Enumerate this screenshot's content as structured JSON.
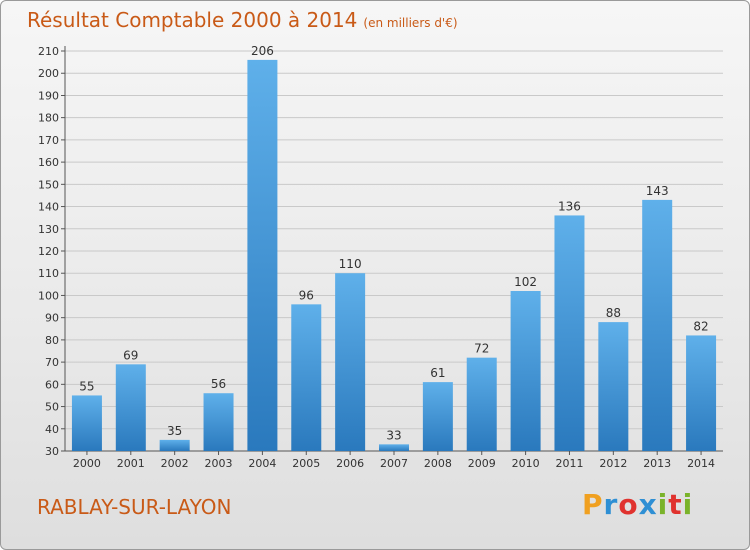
{
  "header": {
    "title": "Résultat Comptable 2000 à 2014",
    "unit": "(en milliers d'€)"
  },
  "footer": {
    "town": "RABLAY-SUR-LAYON",
    "logo": "Proxiti"
  },
  "colors": {
    "title": "#c95a17",
    "bar_top": "#5fb0ea",
    "bar_bottom": "#2a79bd",
    "logo_letters": [
      "#f0a020",
      "#2e8fd4",
      "#e0322e",
      "#2e8fd4",
      "#7ab32a",
      "#e0322e",
      "#7ab32a"
    ]
  },
  "chart_data": {
    "type": "bar",
    "categories": [
      "2000",
      "2001",
      "2002",
      "2003",
      "2004",
      "2005",
      "2006",
      "2007",
      "2008",
      "2009",
      "2010",
      "2011",
      "2012",
      "2013",
      "2014"
    ],
    "values": [
      55,
      69,
      35,
      56,
      206,
      96,
      110,
      33,
      61,
      72,
      102,
      136,
      88,
      143,
      82
    ],
    "ylim": [
      30,
      210
    ],
    "ytick_step": 10,
    "grid": true,
    "title": "Résultat Comptable 2000 à 2014",
    "xlabel": "",
    "ylabel": ""
  }
}
